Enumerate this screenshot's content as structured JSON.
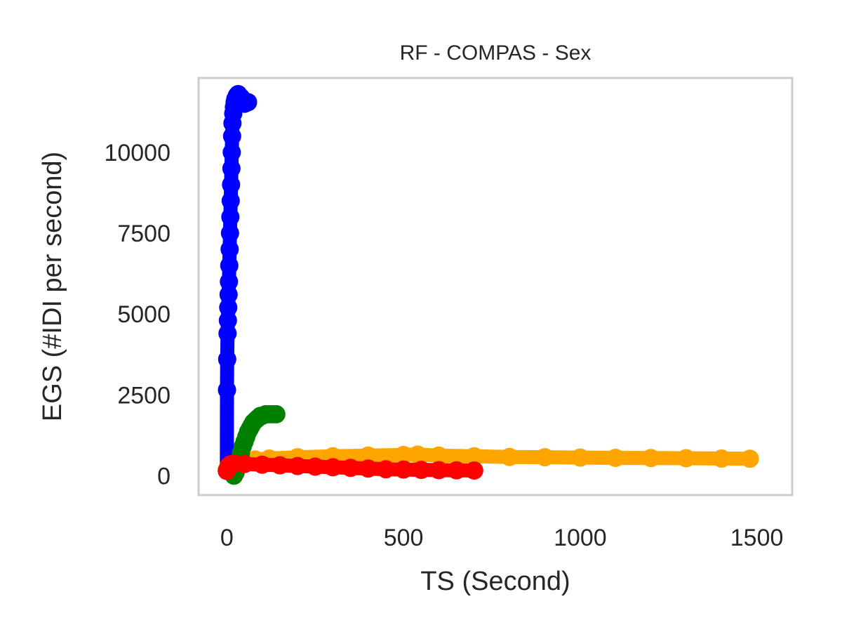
{
  "chart_data": {
    "type": "scatter",
    "title": "RF - COMPAS - Sex",
    "xlabel": "TS (Second)",
    "ylabel": "EGS (#IDI  per second)",
    "xlim": [
      -80,
      1600
    ],
    "ylim": [
      -600,
      12300
    ],
    "xticks": [
      0,
      500,
      1000,
      1500
    ],
    "yticks": [
      0,
      2500,
      5000,
      7500,
      10000
    ],
    "grid": false,
    "series": [
      {
        "color": "#ffa500",
        "x": [
          0,
          5,
          10,
          20,
          40,
          80,
          120,
          200,
          300,
          400,
          500,
          540,
          600,
          700,
          800,
          900,
          1000,
          1100,
          1200,
          1300,
          1400,
          1480
        ],
        "y": [
          200,
          300,
          360,
          400,
          450,
          500,
          530,
          570,
          600,
          620,
          640,
          650,
          620,
          600,
          580,
          570,
          560,
          550,
          545,
          540,
          530,
          525
        ]
      },
      {
        "color": "#0000ff",
        "x": [
          0,
          0.5,
          1,
          2,
          3,
          4,
          5,
          6,
          7,
          8,
          9,
          10,
          11,
          12,
          13,
          14,
          15,
          16,
          18,
          20,
          22,
          24,
          28,
          32,
          40,
          50,
          60
        ],
        "y": [
          150,
          2650,
          3600,
          4400,
          4800,
          5200,
          5600,
          6000,
          6500,
          7000,
          7500,
          8000,
          8500,
          9000,
          9500,
          10000,
          10500,
          10900,
          11200,
          11400,
          11550,
          11650,
          11750,
          11800,
          11700,
          11500,
          11550
        ]
      },
      {
        "color": "#008000",
        "x": [
          20,
          25,
          30,
          35,
          40,
          45,
          50,
          55,
          60,
          65,
          70,
          75,
          80,
          85,
          90,
          95,
          100,
          110,
          120,
          130,
          140
        ],
        "y": [
          0,
          100,
          300,
          500,
          700,
          900,
          1050,
          1200,
          1350,
          1450,
          1550,
          1650,
          1700,
          1750,
          1800,
          1850,
          1850,
          1900,
          1900,
          1900,
          1900
        ]
      },
      {
        "color": "#ff0000",
        "x": [
          0,
          5,
          10,
          20,
          50,
          100,
          150,
          200,
          250,
          300,
          350,
          400,
          450,
          500,
          550,
          600,
          650,
          700
        ],
        "y": [
          150,
          300,
          350,
          370,
          360,
          340,
          320,
          300,
          280,
          260,
          240,
          220,
          200,
          190,
          180,
          170,
          165,
          160
        ]
      }
    ]
  }
}
